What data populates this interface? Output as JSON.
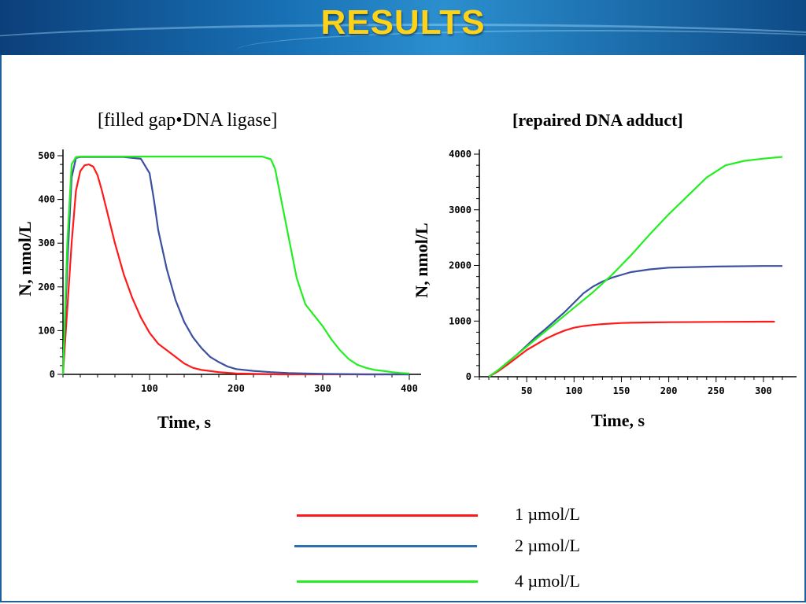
{
  "slide": {
    "title": "RESULTS",
    "colors": {
      "title": "#ffd21a",
      "header": "#1870b4"
    }
  },
  "chart_data": [
    {
      "type": "line",
      "title": "[filled gap•DNA ligase]",
      "ylabel": "N, nmol/L",
      "xlabel": "Time, s",
      "xlim": [
        0,
        400
      ],
      "ylim": [
        0,
        500
      ],
      "xticks": [
        100,
        200,
        300,
        400
      ],
      "yticks": [
        0,
        100,
        200,
        300,
        400,
        500
      ],
      "grid": false,
      "series": [
        {
          "name": "1 µmol/L",
          "color": "#ff1a1a",
          "x": [
            0,
            5,
            10,
            15,
            20,
            25,
            30,
            35,
            40,
            45,
            50,
            60,
            70,
            80,
            90,
            100,
            110,
            120,
            130,
            140,
            150,
            160,
            180,
            200,
            250,
            300,
            350,
            400
          ],
          "y": [
            0,
            150,
            300,
            420,
            465,
            478,
            480,
            475,
            455,
            420,
            380,
            300,
            230,
            175,
            130,
            95,
            70,
            55,
            40,
            25,
            15,
            10,
            5,
            2,
            0,
            0,
            0,
            0
          ]
        },
        {
          "name": "2 µmol/L",
          "color": "#3c4fa0",
          "x": [
            0,
            5,
            10,
            15,
            20,
            30,
            50,
            70,
            90,
            100,
            105,
            110,
            120,
            130,
            140,
            150,
            160,
            170,
            180,
            190,
            200,
            220,
            240,
            260,
            300,
            350,
            400
          ],
          "y": [
            0,
            250,
            450,
            495,
            497,
            497,
            497,
            497,
            493,
            460,
            400,
            330,
            240,
            170,
            120,
            85,
            60,
            40,
            28,
            18,
            12,
            8,
            5,
            3,
            1,
            0,
            0
          ]
        },
        {
          "name": "4 µmol/L",
          "color": "#22ee22",
          "x": [
            0,
            5,
            10,
            15,
            20,
            50,
            100,
            150,
            200,
            230,
            240,
            245,
            250,
            260,
            270,
            280,
            290,
            300,
            310,
            320,
            330,
            340,
            350,
            360,
            370,
            380,
            390,
            400
          ],
          "y": [
            0,
            300,
            480,
            497,
            498,
            498,
            498,
            498,
            498,
            498,
            492,
            470,
            420,
            320,
            220,
            160,
            135,
            110,
            80,
            55,
            35,
            22,
            15,
            10,
            8,
            5,
            3,
            2
          ]
        }
      ]
    },
    {
      "type": "line",
      "title": "[repaired DNA adduct]",
      "ylabel": "N, nmol/L",
      "xlabel": "Time, s",
      "xlim": [
        0,
        320
      ],
      "ylim": [
        0,
        4000
      ],
      "xticks": [
        50,
        100,
        150,
        200,
        250,
        300
      ],
      "yticks": [
        0,
        1000,
        2000,
        3000,
        4000
      ],
      "grid": false,
      "series": [
        {
          "name": "1 µmol/L",
          "color": "#ff1a1a",
          "x": [
            10,
            20,
            30,
            40,
            50,
            60,
            70,
            80,
            90,
            100,
            110,
            120,
            130,
            140,
            150,
            160,
            180,
            200,
            250,
            300,
            312
          ],
          "y": [
            0,
            100,
            220,
            350,
            480,
            580,
            680,
            760,
            830,
            880,
            910,
            930,
            945,
            955,
            965,
            970,
            975,
            980,
            985,
            990,
            990
          ]
        },
        {
          "name": "2 µmol/L",
          "color": "#3c4fa0",
          "x": [
            10,
            20,
            30,
            40,
            50,
            60,
            70,
            80,
            90,
            100,
            110,
            120,
            130,
            140,
            150,
            160,
            180,
            200,
            250,
            300,
            320
          ],
          "y": [
            0,
            120,
            260,
            400,
            560,
            720,
            860,
            1010,
            1160,
            1330,
            1500,
            1620,
            1710,
            1780,
            1830,
            1880,
            1930,
            1960,
            1980,
            1990,
            1990
          ]
        },
        {
          "name": "4 µmol/L",
          "color": "#22ee22",
          "x": [
            10,
            20,
            30,
            40,
            50,
            60,
            70,
            80,
            90,
            100,
            120,
            140,
            160,
            180,
            200,
            220,
            240,
            260,
            280,
            300,
            320
          ],
          "y": [
            0,
            120,
            260,
            400,
            540,
            680,
            820,
            960,
            1100,
            1240,
            1520,
            1830,
            2180,
            2560,
            2920,
            3250,
            3580,
            3800,
            3880,
            3920,
            3950
          ]
        }
      ]
    }
  ],
  "legend": {
    "items": [
      {
        "label": "1 µmol/L",
        "color": "#ff1a1a"
      },
      {
        "label": "2 µmol/L",
        "color": "#2f6fb0"
      },
      {
        "label": "4 µmol/L",
        "color": "#22ee22"
      }
    ]
  }
}
